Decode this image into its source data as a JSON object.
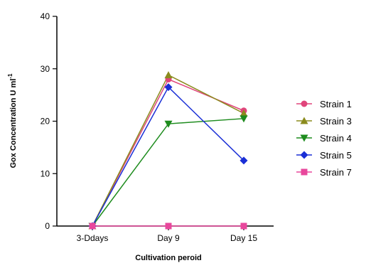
{
  "chart_data": {
    "type": "line",
    "title": "",
    "xlabel": "Cultivation peroid",
    "ylabel": "Gox Concentration U ml",
    "ylabel_superscript": "-1",
    "categories": [
      "3-Ddays",
      "Day 9",
      "Day 15"
    ],
    "ylim": [
      0,
      40
    ],
    "yticks": [
      "0",
      "10",
      "20",
      "30",
      "40"
    ],
    "grid": false,
    "legend_position": "right",
    "series": [
      {
        "name": "Strain 1",
        "values": [
          0,
          28,
          22
        ],
        "color": "#e0457b",
        "marker": "circle"
      },
      {
        "name": "Strain 3",
        "values": [
          0,
          28.8,
          21.5
        ],
        "color": "#8b8b1e",
        "marker": "triangle-up"
      },
      {
        "name": "Strain 4",
        "values": [
          0,
          19.5,
          20.5
        ],
        "color": "#1e8c1e",
        "marker": "triangle-down"
      },
      {
        "name": "Strain 5",
        "values": [
          0,
          26.5,
          12.5
        ],
        "color": "#1a2fd6",
        "marker": "diamond"
      },
      {
        "name": "Strain 7",
        "values": [
          0,
          0,
          0
        ],
        "color": "#e8479c",
        "marker": "square"
      }
    ]
  }
}
